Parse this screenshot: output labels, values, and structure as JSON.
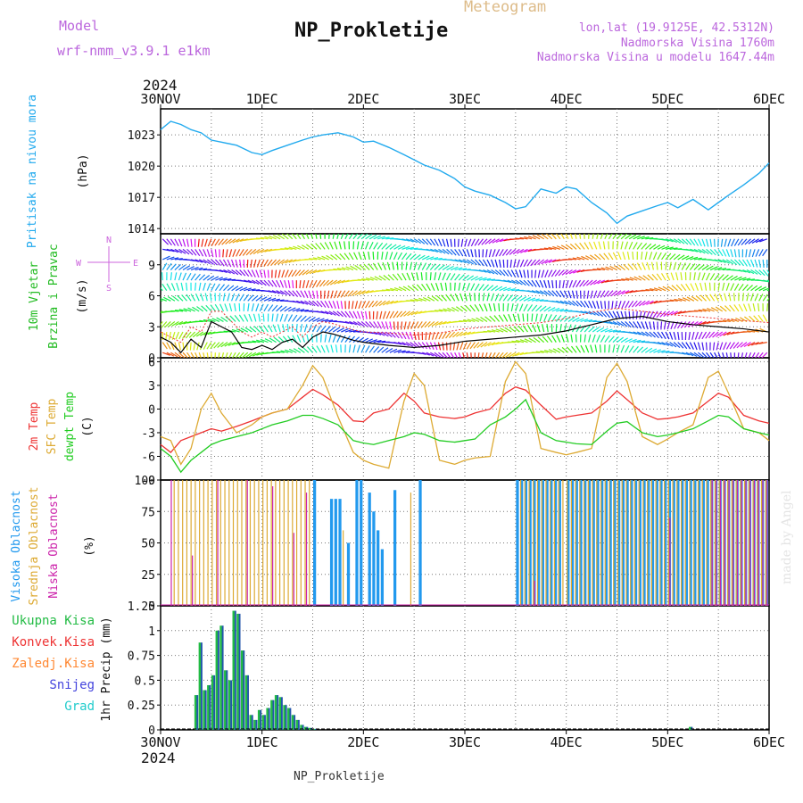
{
  "header": {
    "model_label": "Model",
    "model_name": "wrf-nmm_v3.9.1  e1km",
    "app_title": "Meteogram",
    "station": "NP_Prokletije",
    "lonlat": "lon,lat (19.9125E, 42.5312N)",
    "elevation": "Nadmorska Visina 1760m",
    "model_elevation": "Nadmorska Visina u modelu 1647.44m",
    "credit": "made by Angel",
    "footer_station": "NP_Prokletije"
  },
  "colors": {
    "pressure": "#22aaee",
    "temp2m": "#ee3333",
    "sfc_temp": "#ddaa33",
    "dewpt": "#22cc22",
    "high_cloud": "#2299ee",
    "mid_cloud": "#ddaa33",
    "low_cloud": "#cc22aa",
    "precip_total": "#22bb44",
    "precip_conv": "#ee3333",
    "precip_frozen": "#ff8833",
    "precip_snow": "#4444dd",
    "precip_grad": "#22cccc",
    "wind_text": "#cc66dd"
  },
  "time_axis": {
    "labels": [
      "30NOV",
      "1DEC",
      "2DEC",
      "3DEC",
      "4DEC",
      "5DEC",
      "6DEC"
    ],
    "top_year": "2024",
    "bottom_year": "2024"
  },
  "chart_data": [
    {
      "type": "line",
      "name": "pressure",
      "ylabel": [
        "Pritisak na nivou mora",
        "(hPa)"
      ],
      "ylim": [
        1013.5,
        1025.5
      ],
      "yticks": [
        1014,
        1017,
        1020,
        1023
      ],
      "grid": true,
      "x_days": [
        0,
        0.1,
        0.2,
        0.3,
        0.4,
        0.5,
        0.6,
        0.75,
        0.9,
        1.0,
        1.1,
        1.25,
        1.4,
        1.5,
        1.6,
        1.75,
        1.9,
        2.0,
        2.1,
        2.25,
        2.4,
        2.5,
        2.6,
        2.75,
        2.9,
        3.0,
        3.1,
        3.25,
        3.4,
        3.5,
        3.6,
        3.75,
        3.9,
        4.0,
        4.1,
        4.25,
        4.4,
        4.5,
        4.6,
        4.75,
        4.9,
        5.0,
        5.1,
        5.25,
        5.4,
        5.5,
        5.6,
        5.75,
        5.9,
        6.0
      ],
      "values": [
        1023.5,
        1024.3,
        1024.0,
        1023.5,
        1023.2,
        1022.5,
        1022.3,
        1022.0,
        1021.3,
        1021.1,
        1021.5,
        1022.0,
        1022.5,
        1022.8,
        1023.0,
        1023.2,
        1022.8,
        1022.3,
        1022.4,
        1021.8,
        1021.1,
        1020.6,
        1020.1,
        1019.6,
        1018.8,
        1018.0,
        1017.6,
        1017.2,
        1016.5,
        1015.9,
        1016.1,
        1017.8,
        1017.4,
        1018.0,
        1017.8,
        1016.5,
        1015.5,
        1014.5,
        1015.2,
        1015.7,
        1016.2,
        1016.5,
        1016.0,
        1016.8,
        1015.8,
        1016.5,
        1017.2,
        1018.2,
        1019.3,
        1020.3
      ]
    },
    {
      "type": "line",
      "name": "wind",
      "ylabel": [
        "10m Vjetar",
        "Brzina i Pravac",
        "(m/s)"
      ],
      "compass": [
        "N",
        "E",
        "S",
        "W"
      ],
      "ylim": [
        0,
        12
      ],
      "yticks": [
        0,
        3,
        6,
        9
      ],
      "grid": true,
      "x_days": [
        0,
        0.1,
        0.2,
        0.3,
        0.4,
        0.5,
        0.6,
        0.7,
        0.8,
        0.9,
        1.0,
        1.1,
        1.2,
        1.3,
        1.4,
        1.5,
        1.6,
        1.7,
        1.8,
        1.9,
        2.0,
        2.25,
        2.5,
        2.75,
        3.0,
        3.25,
        3.5,
        3.75,
        4.0,
        4.25,
        4.5,
        4.75,
        5.0,
        5.25,
        5.5,
        5.75,
        6.0
      ],
      "speed": [
        2.0,
        1.5,
        0.5,
        1.8,
        1.0,
        3.5,
        3.0,
        2.5,
        1.0,
        0.8,
        1.2,
        0.8,
        1.5,
        1.8,
        1.0,
        2.0,
        2.5,
        2.3,
        2.0,
        1.7,
        1.5,
        1.2,
        1.0,
        1.2,
        1.6,
        1.8,
        2.0,
        2.2,
        2.6,
        3.2,
        3.8,
        4.0,
        3.5,
        3.2,
        3.0,
        2.8,
        2.5
      ],
      "gust": [
        2.5,
        2.0,
        1.5,
        3.0,
        2.5,
        4.5,
        4.5,
        3.5,
        2.5,
        2.0,
        2.5,
        2.0,
        2.5,
        3.0,
        2.0,
        3.0,
        3.5,
        3.3,
        3.0,
        2.7,
        2.5,
        2.4,
        2.2,
        2.4,
        2.8,
        3.0,
        3.2,
        3.4,
        3.8,
        4.4,
        4.8,
        4.5,
        4.2,
        4.0,
        3.8,
        3.6,
        3.4
      ]
    },
    {
      "type": "line",
      "name": "temperature",
      "ylabel": [
        "2m Temp",
        "SFC Temp",
        "dewpt Temp",
        "(C)"
      ],
      "ylim": [
        -9,
        6.5
      ],
      "yticks": [
        -9,
        -6,
        -3,
        0,
        3,
        6
      ],
      "grid": true,
      "x_days": [
        0,
        0.1,
        0.2,
        0.3,
        0.4,
        0.5,
        0.6,
        0.75,
        0.9,
        1.0,
        1.1,
        1.25,
        1.4,
        1.5,
        1.6,
        1.75,
        1.9,
        2.0,
        2.1,
        2.25,
        2.4,
        2.5,
        2.6,
        2.75,
        2.9,
        3.0,
        3.1,
        3.25,
        3.4,
        3.5,
        3.6,
        3.75,
        3.9,
        4.0,
        4.1,
        4.25,
        4.4,
        4.5,
        4.6,
        4.75,
        4.9,
        5.0,
        5.1,
        5.25,
        5.4,
        5.5,
        5.6,
        5.75,
        5.9,
        6.0
      ],
      "series": [
        {
          "name": "2m Temp",
          "values": [
            -4.5,
            -5.5,
            -4.0,
            -3.5,
            -3.0,
            -2.5,
            -2.8,
            -2.2,
            -1.5,
            -1.0,
            -0.5,
            0.0,
            1.5,
            2.5,
            1.8,
            0.5,
            -1.5,
            -1.6,
            -0.5,
            0.0,
            2.0,
            1.0,
            -0.5,
            -1.0,
            -1.2,
            -1.0,
            -0.5,
            0.0,
            2.0,
            2.8,
            2.4,
            0.5,
            -1.3,
            -1.0,
            -0.8,
            -0.5,
            1.0,
            2.3,
            1.2,
            -0.5,
            -1.3,
            -1.2,
            -1.0,
            -0.5,
            1.0,
            2.0,
            1.5,
            -0.8,
            -1.5,
            -1.8
          ]
        },
        {
          "name": "SFC Temp",
          "values": [
            -3.5,
            -4.0,
            -7.0,
            -5.0,
            0.0,
            2.0,
            -0.5,
            -3.0,
            -2.0,
            -1.0,
            -0.5,
            0.0,
            3.0,
            5.5,
            4.0,
            -1.0,
            -5.5,
            -6.5,
            -7.0,
            -7.5,
            1.0,
            4.5,
            3.0,
            -6.5,
            -7.0,
            -6.5,
            -6.2,
            -6.0,
            3.5,
            6.0,
            4.5,
            -5.0,
            -5.5,
            -5.8,
            -5.5,
            -5.0,
            4.0,
            5.8,
            3.5,
            -3.5,
            -4.5,
            -3.8,
            -3.0,
            -2.0,
            4.0,
            4.8,
            2.0,
            -2.5,
            -3.0,
            -4.0
          ]
        },
        {
          "name": "dewpt Temp",
          "values": [
            -5.0,
            -6.0,
            -8.0,
            -6.5,
            -5.5,
            -4.5,
            -4.0,
            -3.5,
            -3.0,
            -2.5,
            -2.0,
            -1.5,
            -0.8,
            -0.8,
            -1.2,
            -2.0,
            -4.0,
            -4.3,
            -4.5,
            -4.0,
            -3.5,
            -3.0,
            -3.2,
            -4.0,
            -4.2,
            -4.0,
            -3.8,
            -2.0,
            -1.0,
            0.0,
            1.2,
            -3.0,
            -4.0,
            -4.2,
            -4.4,
            -4.5,
            -2.8,
            -1.8,
            -1.6,
            -3.0,
            -3.5,
            -3.3,
            -3.0,
            -2.5,
            -1.5,
            -0.8,
            -1.0,
            -2.5,
            -3.0,
            -3.3
          ]
        }
      ]
    },
    {
      "type": "bar",
      "name": "cloud_cover",
      "ylabel": [
        "Visoka Oblacnost",
        "Srednja Oblacnost",
        "Niska Oblacnost",
        "(%)"
      ],
      "ylim": [
        0,
        100
      ],
      "yticks": [
        0,
        25,
        50,
        75,
        100
      ],
      "grid": true,
      "step_hours": 1,
      "series": [
        {
          "name": "Visoka Oblacnost",
          "runs": [
            [
              36,
              37,
              100
            ],
            [
              40,
              43,
              85
            ],
            [
              44,
              45,
              50
            ],
            [
              46,
              48,
              100
            ],
            [
              49,
              50,
              90
            ],
            [
              50,
              51,
              75
            ],
            [
              51,
              52,
              60
            ],
            [
              52,
              53,
              45
            ],
            [
              55,
              56,
              92
            ],
            [
              61,
              62,
              100
            ],
            [
              84,
              95,
              100
            ],
            [
              96,
              144,
              100
            ]
          ]
        },
        {
          "name": "Srednja Oblacnost",
          "runs": [
            [
              3,
              36,
              100
            ],
            [
              43,
              44,
              60
            ],
            [
              59,
              60,
              90
            ],
            [
              85,
              144,
              100
            ]
          ]
        },
        {
          "name": "Niska Oblacnost",
          "runs": [
            [
              2,
              3,
              100
            ],
            [
              7,
              8,
              40
            ],
            [
              13,
              14,
              100
            ],
            [
              20,
              21,
              100
            ],
            [
              26,
              27,
              95
            ],
            [
              31,
              32,
              58
            ],
            [
              34,
              35,
              90
            ],
            [
              88,
              89,
              20
            ],
            [
              120,
              121,
              70
            ],
            [
              130,
              144,
              100
            ]
          ]
        }
      ]
    },
    {
      "type": "bar",
      "name": "precipitation",
      "ylabel": [
        "1hr Precip (mm)"
      ],
      "legend": [
        "Ukupna Kisa",
        "Konvek.Kisa",
        "Zaledj.Kisa",
        "Snijeg",
        "Grad"
      ],
      "ylim": [
        0,
        1.25
      ],
      "yticks": [
        0,
        0.25,
        0.5,
        0.75,
        1,
        1.25
      ],
      "grid": true,
      "step_hours": 1,
      "hours": [
        8,
        9,
        10,
        11,
        12,
        13,
        14,
        15,
        16,
        17,
        18,
        19,
        20,
        21,
        22,
        23,
        24,
        25,
        26,
        27,
        28,
        29,
        30,
        31,
        32,
        33,
        34,
        35,
        36,
        125
      ],
      "values": [
        0.35,
        0.88,
        0.4,
        0.45,
        0.55,
        1.0,
        1.05,
        0.6,
        0.5,
        1.2,
        1.17,
        0.8,
        0.55,
        0.15,
        0.1,
        0.2,
        0.15,
        0.22,
        0.3,
        0.35,
        0.33,
        0.25,
        0.22,
        0.15,
        0.1,
        0.05,
        0.03,
        0.02,
        0.01,
        0.03
      ]
    }
  ]
}
